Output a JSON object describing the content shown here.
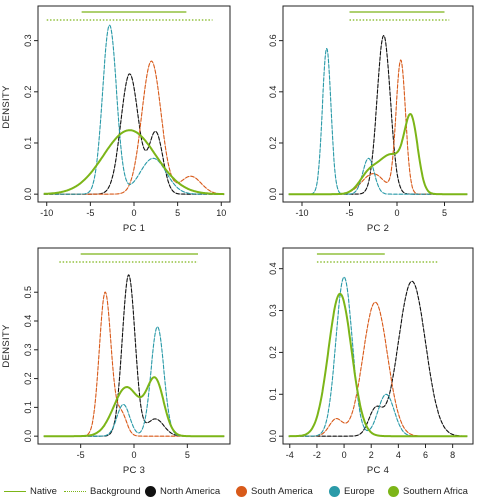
{
  "colors": {
    "north_america": "#111111",
    "south_america": "#d85a1a",
    "europe": "#2a9aa8",
    "southern_africa": "#7cb518"
  },
  "legend": {
    "native_label": "Native",
    "background_label": "Background",
    "north_america_label": "North America",
    "south_america_label": "South America",
    "europe_label": "Europe",
    "southern_africa_label": "Southern Africa"
  },
  "chart_data": [
    {
      "type": "line",
      "xlabel": "PC 1",
      "ylabel": "DENSITY",
      "xlim": [
        -11,
        11
      ],
      "ylim": [
        0,
        0.36
      ],
      "xticks": [
        -10,
        -5,
        0,
        5,
        10
      ],
      "yticks": [
        0.0,
        0.1,
        0.2,
        0.3
      ],
      "ytick_labels": [
        "0.0",
        "0.1",
        "0.2",
        "0.3"
      ],
      "native_range": [
        -6,
        6
      ],
      "background_range": [
        -10,
        9
      ],
      "series": [
        {
          "name": "North America",
          "color_key": "north_america",
          "components": [
            [
              0.235,
              -0.5,
              1.0
            ],
            [
              0.12,
              2.5,
              0.8
            ]
          ]
        },
        {
          "name": "South America",
          "color_key": "south_america",
          "components": [
            [
              0.26,
              2.0,
              1.1
            ],
            [
              0.035,
              6.5,
              1.2
            ]
          ]
        },
        {
          "name": "Europe",
          "color_key": "europe",
          "components": [
            [
              0.33,
              -2.8,
              0.8
            ],
            [
              0.07,
              2.2,
              1.5
            ]
          ]
        },
        {
          "name": "Southern Africa",
          "color_key": "southern_africa",
          "components": [
            [
              0.125,
              -0.5,
              3.0
            ]
          ]
        }
      ]
    },
    {
      "type": "line",
      "xlabel": "PC 2",
      "ylabel": "",
      "xlim": [
        -12,
        8
      ],
      "ylim": [
        0,
        0.72
      ],
      "xticks": [
        -10,
        -5,
        0,
        5
      ],
      "yticks": [
        0.0,
        0.2,
        0.4,
        0.6
      ],
      "ytick_labels": [
        "0.0",
        "0.2",
        "0.4",
        "0.6"
      ],
      "native_range": [
        -5,
        5
      ],
      "background_range": [
        -5,
        5.5
      ],
      "series": [
        {
          "name": "North America",
          "color_key": "north_america",
          "components": [
            [
              0.62,
              -1.4,
              0.7
            ]
          ]
        },
        {
          "name": "South America",
          "color_key": "south_america",
          "components": [
            [
              0.52,
              0.4,
              0.5
            ],
            [
              0.08,
              -2.5,
              1.2
            ]
          ]
        },
        {
          "name": "Europe",
          "color_key": "europe",
          "components": [
            [
              0.57,
              -7.4,
              0.45
            ],
            [
              0.14,
              -3.0,
              0.6
            ]
          ]
        },
        {
          "name": "Southern Africa",
          "color_key": "southern_africa",
          "components": [
            [
              0.27,
              1.5,
              0.7
            ],
            [
              0.15,
              -0.6,
              1.3
            ],
            [
              0.07,
              -3.0,
              1.0
            ]
          ]
        }
      ]
    },
    {
      "type": "line",
      "xlabel": "PC 3",
      "ylabel": "DENSITY",
      "xlim": [
        -9,
        9
      ],
      "ylim": [
        0,
        0.64
      ],
      "xticks": [
        -5,
        0,
        5
      ],
      "yticks": [
        0.0,
        0.1,
        0.2,
        0.3,
        0.4,
        0.5
      ],
      "ytick_labels": [
        "0.0",
        "0.1",
        "0.2",
        "0.3",
        "0.4",
        "0.5"
      ],
      "native_range": [
        -5,
        6
      ],
      "background_range": [
        -7,
        6
      ],
      "series": [
        {
          "name": "North America",
          "color_key": "north_america",
          "components": [
            [
              0.56,
              -0.5,
              0.6
            ],
            [
              0.06,
              2.0,
              0.8
            ]
          ]
        },
        {
          "name": "South America",
          "color_key": "south_america",
          "components": [
            [
              0.5,
              -2.7,
              0.55
            ],
            [
              0.08,
              -1.2,
              0.5
            ]
          ]
        },
        {
          "name": "Europe",
          "color_key": "europe",
          "components": [
            [
              0.38,
              2.2,
              0.6
            ],
            [
              0.11,
              -1.0,
              0.6
            ]
          ]
        },
        {
          "name": "Southern Africa",
          "color_key": "southern_africa",
          "components": [
            [
              0.17,
              -0.7,
              1.2
            ],
            [
              0.19,
              2.0,
              0.8
            ]
          ]
        }
      ]
    },
    {
      "type": "line",
      "xlabel": "PC 4",
      "ylabel": "",
      "xlim": [
        -4.5,
        9.5
      ],
      "ylim": [
        0,
        0.44
      ],
      "xticks": [
        -4,
        -2,
        0,
        2,
        4,
        6,
        8
      ],
      "yticks": [
        0.0,
        0.1,
        0.2,
        0.3,
        0.4
      ],
      "ytick_labels": [
        "0.0",
        "0.1",
        "0.2",
        "0.3",
        "0.4"
      ],
      "native_range": [
        -2,
        3
      ],
      "background_range": [
        -2,
        7
      ],
      "series": [
        {
          "name": "North America",
          "color_key": "north_america",
          "components": [
            [
              0.37,
              5.0,
              1.0
            ],
            [
              0.06,
              2.3,
              0.5
            ]
          ]
        },
        {
          "name": "South America",
          "color_key": "south_america",
          "components": [
            [
              0.32,
              2.3,
              0.9
            ],
            [
              0.04,
              -0.6,
              0.5
            ]
          ]
        },
        {
          "name": "Europe",
          "color_key": "europe",
          "components": [
            [
              0.38,
              0.0,
              0.6
            ],
            [
              0.1,
              3.1,
              0.6
            ]
          ]
        },
        {
          "name": "Southern Africa",
          "color_key": "southern_africa",
          "components": [
            [
              0.34,
              -0.3,
              0.85
            ]
          ]
        }
      ]
    }
  ]
}
